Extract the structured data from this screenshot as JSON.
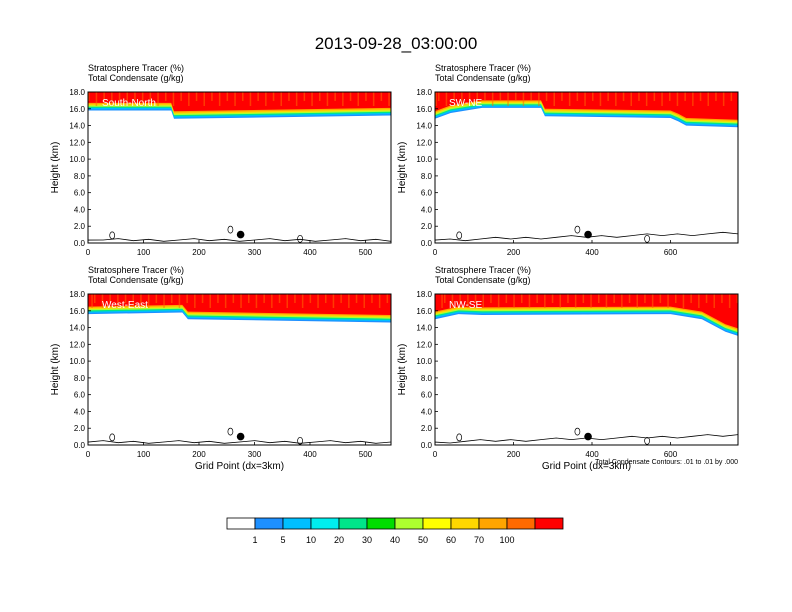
{
  "title": "2013-09-28_03:00:00",
  "footnote": "Total Condensate Contours: .01 to .01 by .000",
  "colorbar": {
    "labels": [
      "1",
      "5",
      "10",
      "20",
      "30",
      "40",
      "50",
      "60",
      "70",
      "100"
    ],
    "colors": [
      "#ffffff",
      "#1e90ff",
      "#00bfff",
      "#00eeee",
      "#00e58a",
      "#00dd00",
      "#adff2f",
      "#ffff00",
      "#ffd700",
      "#ffa500",
      "#ff6a00",
      "#ff0000"
    ]
  },
  "chart_data": [
    {
      "type": "contour-cross-section",
      "panel_label": "South-North",
      "header_line1": "Stratosphere Tracer   (%)",
      "header_line2": "Total Condensate   (g/kg)",
      "ylabel": "Height (km)",
      "xlabel": "",
      "ylim": [
        0,
        18
      ],
      "yticks": [
        "0.0",
        "2.0",
        "4.0",
        "6.0",
        "8.0",
        "10.0",
        "12.0",
        "14.0",
        "16.0",
        "18.0"
      ],
      "xlim": [
        0,
        546
      ],
      "xticks": [
        0,
        100,
        200,
        300,
        400,
        500
      ],
      "tracer_base_km": [
        [
          0,
          15.8
        ],
        [
          150,
          15.8
        ],
        [
          155,
          14.8
        ],
        [
          546,
          15.2
        ]
      ],
      "tracer_top_km": 18.0,
      "marker_x": 275,
      "marker_km": 1.0
    },
    {
      "type": "contour-cross-section",
      "panel_label": "SW-NE",
      "header_line1": "Stratosphere Tracer   (%)",
      "header_line2": "Total Condensate   (g/kg)",
      "ylabel": "Height (km)",
      "xlabel": "",
      "ylim": [
        0,
        18
      ],
      "yticks": [
        "0.0",
        "2.0",
        "4.0",
        "6.0",
        "8.0",
        "10.0",
        "12.0",
        "14.0",
        "16.0",
        "18.0"
      ],
      "xlim": [
        0,
        772
      ],
      "xticks": [
        0,
        200,
        400,
        600
      ],
      "tracer_base_km": [
        [
          0,
          14.8
        ],
        [
          40,
          15.5
        ],
        [
          120,
          16.1
        ],
        [
          270,
          16.1
        ],
        [
          280,
          15.1
        ],
        [
          600,
          14.9
        ],
        [
          620,
          14.5
        ],
        [
          640,
          14.0
        ],
        [
          772,
          13.8
        ]
      ],
      "tracer_top_km": 18.0,
      "marker_x": 390,
      "marker_km": 1.0
    },
    {
      "type": "contour-cross-section",
      "panel_label": "West-East",
      "header_line1": "Stratosphere Tracer   (%)",
      "header_line2": "Total Condensate   (g/kg)",
      "ylabel": "Height (km)",
      "xlabel": "Grid Point (dx=3km)",
      "ylim": [
        0,
        18
      ],
      "yticks": [
        "0.0",
        "2.0",
        "4.0",
        "6.0",
        "8.0",
        "10.0",
        "12.0",
        "14.0",
        "16.0",
        "18.0"
      ],
      "xlim": [
        0,
        546
      ],
      "xticks": [
        0,
        100,
        200,
        300,
        400,
        500
      ],
      "tracer_base_km": [
        [
          0,
          15.6
        ],
        [
          170,
          15.8
        ],
        [
          180,
          15.0
        ],
        [
          546,
          14.6
        ]
      ],
      "tracer_top_km": 18.0,
      "marker_x": 275,
      "marker_km": 1.0
    },
    {
      "type": "contour-cross-section",
      "panel_label": "NW-SE",
      "header_line1": "Stratosphere Tracer   (%)",
      "header_line2": "Total Condensate   (g/kg)",
      "ylabel": "Height (km)",
      "xlabel": "Grid Point (dx=3km)",
      "ylim": [
        0,
        18
      ],
      "yticks": [
        "0.0",
        "2.0",
        "4.0",
        "6.0",
        "8.0",
        "10.0",
        "12.0",
        "14.0",
        "16.0",
        "18.0"
      ],
      "xlim": [
        0,
        772
      ],
      "xticks": [
        0,
        200,
        400,
        600
      ],
      "tracer_base_km": [
        [
          0,
          15.0
        ],
        [
          60,
          15.6
        ],
        [
          120,
          15.5
        ],
        [
          600,
          15.6
        ],
        [
          680,
          15.0
        ],
        [
          740,
          13.5
        ],
        [
          772,
          13.0
        ]
      ],
      "tracer_top_km": 18.0,
      "marker_x": 390,
      "marker_km": 1.0
    }
  ]
}
